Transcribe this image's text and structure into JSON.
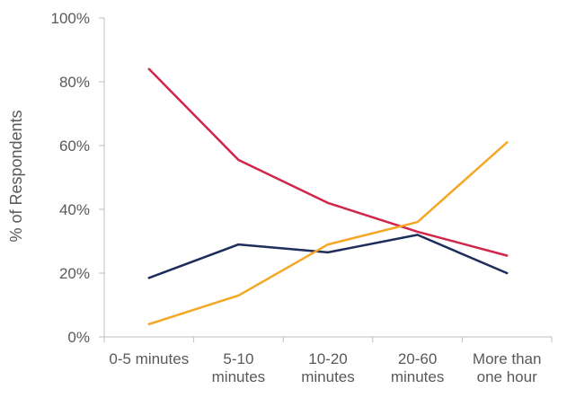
{
  "chart_data": {
    "type": "line",
    "title": "",
    "xlabel": "",
    "ylabel": "% of Respondents",
    "ylim": [
      0,
      100
    ],
    "y_ticks": [
      "0%",
      "20%",
      "40%",
      "60%",
      "80%",
      "100%"
    ],
    "categories": [
      [
        "0-5 minutes"
      ],
      [
        "5-10",
        "minutes"
      ],
      [
        "10-20",
        "minutes"
      ],
      [
        "20-60",
        "minutes"
      ],
      [
        "More than",
        "one hour"
      ]
    ],
    "grid": false,
    "legend": "none",
    "series": [
      {
        "color": "#d0264b",
        "values": [
          84,
          55.5,
          42,
          33,
          25.5
        ]
      },
      {
        "color": "#1f2d5a",
        "values": [
          18.5,
          29,
          26.5,
          32,
          20
        ]
      },
      {
        "color": "#f5a623",
        "values": [
          4,
          13,
          29,
          36,
          61
        ]
      }
    ]
  }
}
